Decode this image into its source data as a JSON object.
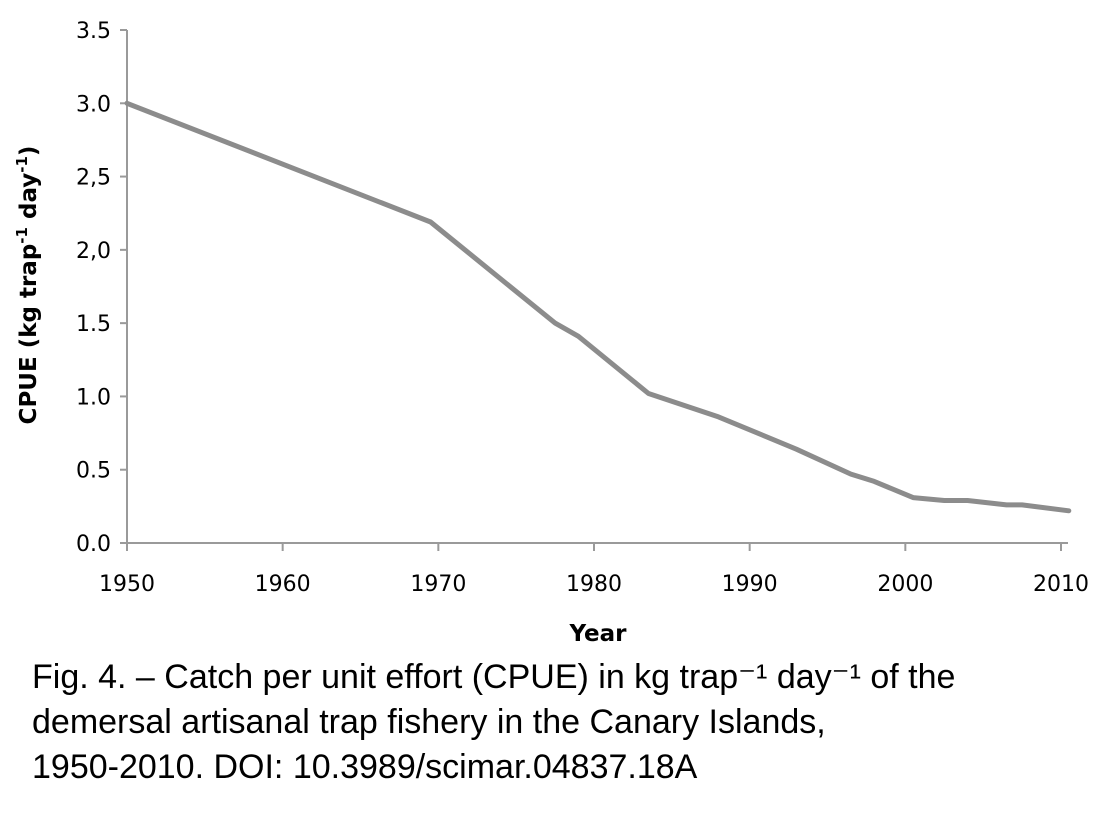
{
  "chart_data": {
    "type": "line",
    "xlabel": "Year",
    "ylabel": "CPUE (kg trap-1 day-1)",
    "ylabel_parts": [
      "CPUE (kg trap",
      "-1",
      " day",
      "-1",
      ")"
    ],
    "xlim": [
      1950,
      2010
    ],
    "ylim": [
      0.0,
      3.5
    ],
    "x_ticks": [
      "1950",
      "1960",
      "1970",
      "1980",
      "1990",
      "2000",
      "2010"
    ],
    "x_tick_values": [
      1950,
      1960,
      1970,
      1980,
      1990,
      2000,
      2010
    ],
    "y_ticks": [
      "0.0",
      "0.5",
      "1.0",
      "1.5",
      "2,0",
      "2,5",
      "3.0",
      "3.5"
    ],
    "y_tick_values": [
      0.0,
      0.5,
      1.0,
      1.5,
      2.0,
      2.5,
      3.0,
      3.5
    ],
    "grid": false,
    "legend": "none",
    "series": [
      {
        "color": "#8c8c8c",
        "x": [
          1950,
          1969.5,
          1977.5,
          1979,
          1983.5,
          1988,
          1993,
          1996.5,
          1998,
          2000.5,
          2002.5,
          2004,
          2006.5,
          2007.5,
          2010.5
        ],
        "y": [
          3.0,
          2.19,
          1.5,
          1.41,
          1.02,
          0.86,
          0.64,
          0.47,
          0.42,
          0.31,
          0.29,
          0.29,
          0.26,
          0.26,
          0.22
        ]
      }
    ]
  },
  "caption": {
    "lines": [
      "Fig. 4. – Catch per unit effort (CPUE) in kg trap⁻¹ day⁻¹ of the",
      "demersal artisanal trap fishery in the Canary Islands,",
      "1950-2010. DOI: 10.3989/scimar.04837.18A"
    ]
  }
}
